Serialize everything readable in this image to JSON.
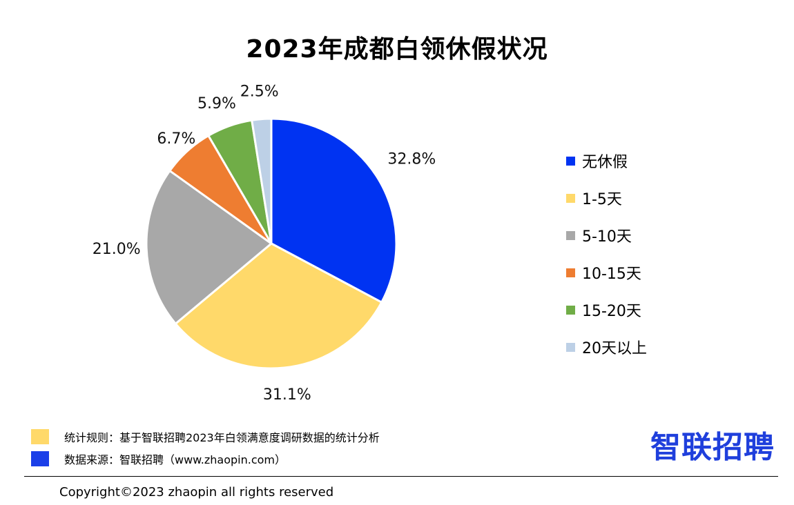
{
  "chart_data": {
    "type": "pie",
    "title": "2023年成都白领休假状况",
    "categories": [
      "无休假",
      "1-5天",
      "5-10天",
      "10-15天",
      "15-20天",
      "20天以上"
    ],
    "values": [
      32.8,
      31.1,
      21.0,
      6.7,
      5.9,
      2.5
    ],
    "data_labels": [
      "32.8%",
      "31.1%",
      "21.0%",
      "6.7%",
      "5.9%",
      "2.5%"
    ],
    "colors": [
      "#0033f2",
      "#ffd96a",
      "#a8a8a8",
      "#ee7d31",
      "#70ad47",
      "#bdd0e6"
    ],
    "legend_position": "right",
    "start": "12 o'clock, clockwise"
  },
  "notes": [
    {
      "text": "统计规则：基于智联招聘2023年白领满意度调研数据的统计分析",
      "color": "#ffd96a"
    },
    {
      "text": "数据来源：智联招聘（www.zhaopin.com）",
      "color": "#1b3fe8"
    }
  ],
  "brand": {
    "logo_text": "智联招聘",
    "color": "#1f3fdc"
  },
  "footer": {
    "copyright": "Copyright©2023 zhaopin all rights reserved"
  }
}
